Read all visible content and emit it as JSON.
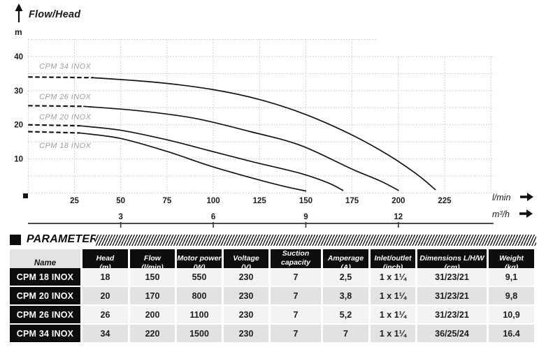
{
  "chart_data": {
    "type": "line",
    "title": "Flow/Head",
    "ylabel": "m",
    "xlabel_primary": "l/min",
    "xlabel_secondary": "m³/h",
    "xlim": [
      0,
      252
    ],
    "ylim": [
      0,
      45
    ],
    "grid": "dotted, every 25 l/min and every 5 m",
    "legend_position": "labels next to curves",
    "x_ticks": [
      25,
      50,
      75,
      100,
      125,
      150,
      175,
      200,
      225
    ],
    "y_ticks": [
      10,
      20,
      30,
      40
    ],
    "secondary_x_ticks": [
      {
        "label": "3",
        "lmin": 50
      },
      {
        "label": "6",
        "lmin": 100
      },
      {
        "label": "9",
        "lmin": 150
      },
      {
        "label": "12",
        "lmin": 200
      }
    ],
    "series": [
      {
        "name": "CPM 34 INOX",
        "shutoff_head_m": 34,
        "max_flow_lmin": 220,
        "dashed": [
          [
            0,
            34
          ],
          [
            35,
            33.8
          ]
        ],
        "points": [
          [
            35,
            33.8
          ],
          [
            70,
            32.4
          ],
          [
            100,
            30.3
          ],
          [
            125,
            27.4
          ],
          [
            150,
            23
          ],
          [
            175,
            17
          ],
          [
            195,
            11
          ],
          [
            210,
            5.5
          ],
          [
            220,
            1
          ]
        ]
      },
      {
        "name": "CPM 26 INOX",
        "shutoff_head_m": 26,
        "max_flow_lmin": 200,
        "dashed": [
          [
            0,
            25.6
          ],
          [
            30,
            25.4
          ]
        ],
        "points": [
          [
            30,
            25.4
          ],
          [
            60,
            24.1
          ],
          [
            90,
            21.9
          ],
          [
            120,
            18
          ],
          [
            147,
            14
          ],
          [
            175,
            7
          ],
          [
            190,
            3.6
          ],
          [
            200,
            0.8
          ]
        ]
      },
      {
        "name": "CPM 20 INOX",
        "shutoff_head_m": 20,
        "max_flow_lmin": 170,
        "dashed": [
          [
            0,
            20
          ],
          [
            28,
            19.7
          ]
        ],
        "points": [
          [
            28,
            19.7
          ],
          [
            50,
            18.4
          ],
          [
            75,
            15.6
          ],
          [
            98,
            12.4
          ],
          [
            121,
            9.2
          ],
          [
            147,
            5.8
          ],
          [
            162,
            3
          ],
          [
            170,
            0.8
          ]
        ]
      },
      {
        "name": "CPM 18 INOX",
        "shutoff_head_m": 18,
        "max_flow_lmin": 150,
        "dashed": [
          [
            0,
            18
          ],
          [
            28,
            17.6
          ]
        ],
        "points": [
          [
            28,
            17.6
          ],
          [
            50,
            16
          ],
          [
            75,
            12.2
          ],
          [
            98,
            8
          ],
          [
            121,
            4.4
          ],
          [
            138,
            2
          ],
          [
            150,
            0.6
          ]
        ]
      }
    ],
    "annotations": [
      {
        "text": "CPM 34 INOX",
        "flow": 6,
        "head": 37.2
      },
      {
        "text": "CPM 26 INOX",
        "flow": 6,
        "head": 28.3
      },
      {
        "text": "CPM 20 INOX",
        "flow": 6,
        "head": 22.4
      },
      {
        "text": "CPM 18 INOX",
        "flow": 6,
        "head": 14.0
      }
    ]
  },
  "table": {
    "section_title": "PARAMETERS",
    "columns": [
      {
        "label": "Name",
        "unit": ""
      },
      {
        "label": "Head",
        "unit": "(m)"
      },
      {
        "label": "Flow",
        "unit": "(l/min)"
      },
      {
        "label": "Motor power",
        "unit": "(W)"
      },
      {
        "label": "Voltage",
        "unit": "(V)"
      },
      {
        "label": "Suction capacity",
        "unit": "(m.)"
      },
      {
        "label": "Amperage",
        "unit": "(A)"
      },
      {
        "label": "Inlet/outlet",
        "unit": "(inch)"
      },
      {
        "label": "Dimensions L/H/W",
        "unit": "(cm)"
      },
      {
        "label": "Weight",
        "unit": "(kg)"
      }
    ],
    "rows": [
      {
        "name": "CPM 18 INOX",
        "values": [
          "18",
          "150",
          "550",
          "230",
          "7",
          "2,5",
          "1 x 1¼",
          "31/23/21",
          "9,1"
        ]
      },
      {
        "name": "CPM 20 INOX",
        "values": [
          "20",
          "170",
          "800",
          "230",
          "7",
          "3,8",
          "1 x 1¼",
          "31/23/21",
          "9,8"
        ]
      },
      {
        "name": "CPM 26 INOX",
        "values": [
          "26",
          "200",
          "1100",
          "230",
          "7",
          "5,2",
          "1 x 1¼",
          "31/23/21",
          "10,9"
        ]
      },
      {
        "name": "CPM 34 INOX",
        "values": [
          "34",
          "220",
          "1500",
          "230",
          "7",
          "7",
          "1 x 1¼",
          "36/25/24",
          "16.4"
        ]
      }
    ]
  }
}
